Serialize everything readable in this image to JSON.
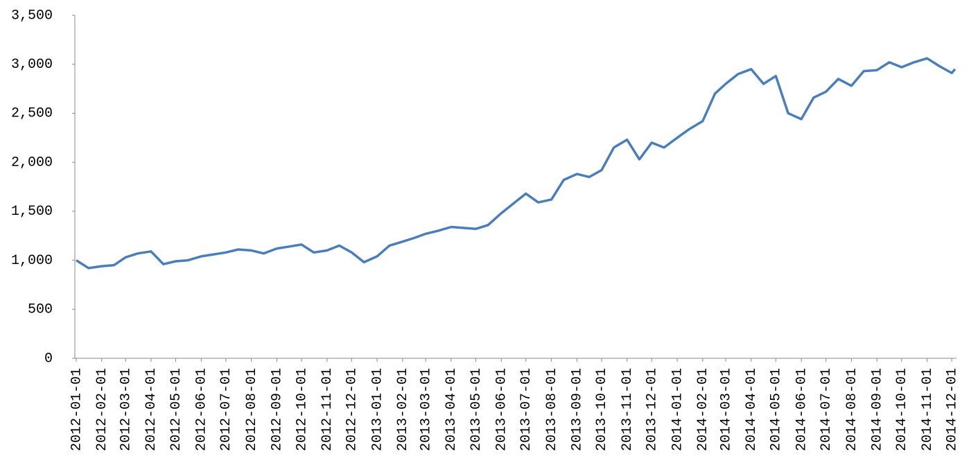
{
  "chart_data": {
    "type": "line",
    "x": [
      "2012-01-01",
      "2012-01-16",
      "2012-02-01",
      "2012-02-16",
      "2012-03-01",
      "2012-03-16",
      "2012-04-01",
      "2012-04-16",
      "2012-05-01",
      "2012-05-16",
      "2012-06-01",
      "2012-06-16",
      "2012-07-01",
      "2012-07-16",
      "2012-08-01",
      "2012-08-16",
      "2012-09-01",
      "2012-09-16",
      "2012-10-01",
      "2012-10-16",
      "2012-11-01",
      "2012-11-16",
      "2012-12-01",
      "2012-12-16",
      "2013-01-01",
      "2013-01-16",
      "2013-02-01",
      "2013-02-16",
      "2013-03-01",
      "2013-03-16",
      "2013-04-01",
      "2013-04-16",
      "2013-05-01",
      "2013-05-16",
      "2013-06-01",
      "2013-06-16",
      "2013-07-01",
      "2013-07-16",
      "2013-08-01",
      "2013-08-16",
      "2013-09-01",
      "2013-09-16",
      "2013-10-01",
      "2013-10-16",
      "2013-11-01",
      "2013-11-16",
      "2013-12-01",
      "2013-12-16",
      "2014-01-01",
      "2014-01-16",
      "2014-02-01",
      "2014-02-16",
      "2014-03-01",
      "2014-03-16",
      "2014-04-01",
      "2014-04-16",
      "2014-05-01",
      "2014-05-16",
      "2014-06-01",
      "2014-06-16",
      "2014-07-01",
      "2014-07-16",
      "2014-08-01",
      "2014-08-16",
      "2014-09-01",
      "2014-09-16",
      "2014-10-01",
      "2014-10-16",
      "2014-11-01",
      "2014-11-16",
      "2014-12-01",
      "2014-12-05"
    ],
    "series": [
      {
        "color": "#4a7ebb",
        "values": [
          1000,
          920,
          940,
          950,
          1030,
          1070,
          1090,
          960,
          990,
          1000,
          1040,
          1060,
          1080,
          1110,
          1100,
          1070,
          1120,
          1140,
          1160,
          1080,
          1100,
          1150,
          1080,
          980,
          1040,
          1150,
          1190,
          1230,
          1270,
          1300,
          1340,
          1330,
          1320,
          1360,
          1480,
          1580,
          1680,
          1590,
          1620,
          1820,
          1880,
          1850,
          1920,
          2150,
          2230,
          2030,
          2200,
          2150,
          2250,
          2340,
          2420,
          2700,
          2800,
          2900,
          2950,
          2800,
          2880,
          2500,
          2440,
          2660,
          2720,
          2850,
          2780,
          2930,
          2940,
          3020,
          2970,
          3020,
          3060,
          2980,
          2910,
          2950
        ]
      }
    ],
    "xlim": [
      "2012-01-01",
      "2014-12-05"
    ],
    "xticks": [
      "2012-01-01",
      "2012-02-01",
      "2012-03-01",
      "2012-04-01",
      "2012-05-01",
      "2012-06-01",
      "2012-07-01",
      "2012-08-01",
      "2012-09-01",
      "2012-10-01",
      "2012-11-01",
      "2012-12-01",
      "2013-01-01",
      "2013-02-01",
      "2013-03-01",
      "2013-04-01",
      "2013-05-01",
      "2013-06-01",
      "2013-07-01",
      "2013-08-01",
      "2013-09-01",
      "2013-10-01",
      "2013-11-01",
      "2013-12-01",
      "2014-01-01",
      "2014-02-01",
      "2014-03-01",
      "2014-04-01",
      "2014-05-01",
      "2014-06-01",
      "2014-07-01",
      "2014-08-01",
      "2014-09-01",
      "2014-10-01",
      "2014-11-01",
      "2014-12-01"
    ],
    "ylim": [
      0,
      3500
    ],
    "yticks": [
      0,
      500,
      {
        "value": 1000,
        "label": "1,000"
      },
      {
        "value": 1500,
        "label": "1,500"
      },
      {
        "value": 2000,
        "label": "2,000"
      },
      {
        "value": 2500,
        "label": "2,500"
      },
      {
        "value": 3000,
        "label": "3,000"
      },
      {
        "value": 3500,
        "label": "3,500"
      }
    ]
  }
}
